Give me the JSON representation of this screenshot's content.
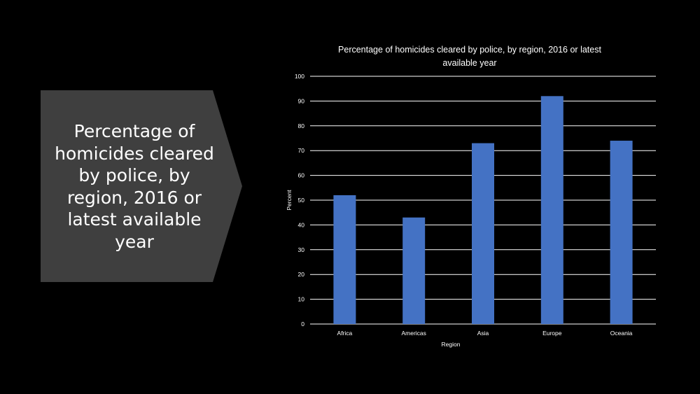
{
  "slide": {
    "callout_text": "Percentage of homicides cleared by police, by region, 2016 or latest available year"
  },
  "colors": {
    "background": "#000000",
    "callout_fill": "#3f3f3f",
    "bar": "#4472c4",
    "gridline": "#ffffff",
    "text": "#ffffff"
  },
  "chart_data": {
    "type": "bar",
    "title": "Percentage of homicides cleared by police,  by region, 2016 or latest available year",
    "title_lines": [
      "Percentage of homicides cleared by police,  by region, 2016 or latest",
      "available year"
    ],
    "xlabel": "Region",
    "ylabel": "Percent",
    "categories": [
      "Africa",
      "Americas",
      "Asia",
      "Europe",
      "Oceania"
    ],
    "values": [
      52,
      43,
      73,
      92,
      74
    ],
    "ylim": [
      0,
      100
    ],
    "yticks": [
      0,
      10,
      20,
      30,
      40,
      50,
      60,
      70,
      80,
      90,
      100
    ],
    "grid": true,
    "legend": false
  }
}
